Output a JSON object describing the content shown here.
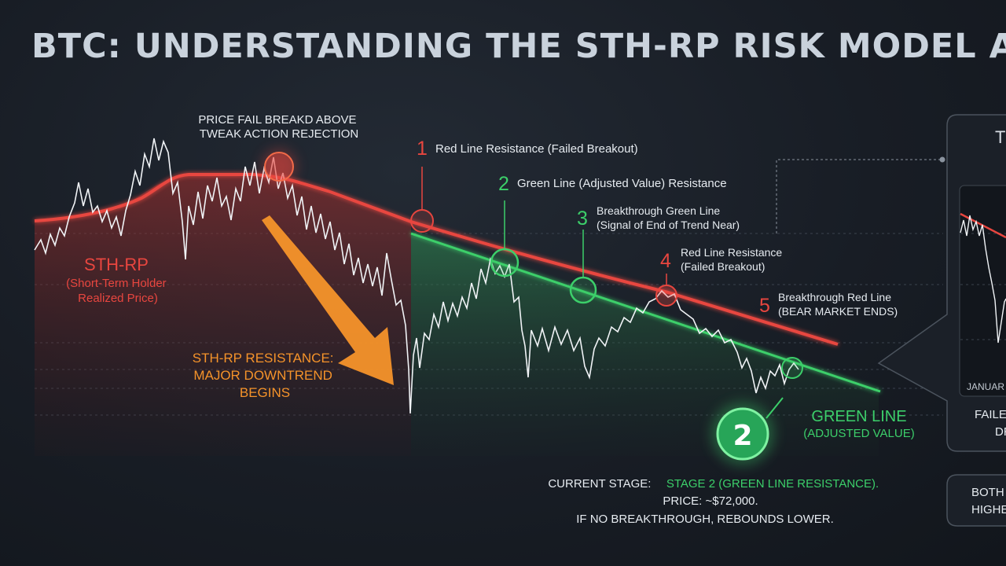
{
  "title": "BTC: UNDERSTANDING THE STH-RP RISK MODEL AN",
  "colors": {
    "red_line": "#e8463f",
    "green_line": "#3ccf6a",
    "orange": "#f5932a",
    "price": "#f0f3f6",
    "text": "#e6ebf0"
  },
  "annotations": {
    "top_rejection": [
      "PRICE FAIL BREAKD ABOVE",
      "TWEAK ACTION REJECTION"
    ],
    "sth_label": "STH-RP",
    "sth_sub": [
      "(Short-Term Holder",
      "Realized Price)"
    ],
    "resistance_note": [
      "STH-RP RESISTANCE:",
      "MAJOR DOWNTREND",
      "BEGINS"
    ],
    "green_label": "GREEN LINE",
    "green_sub": "(ADJUSTED VALUE)",
    "stage_badge": "2",
    "current_stage_prefix": "CURRENT STAGE:",
    "current_stage_value": "STAGE 2 (GREEN LINE RESISTANCE).",
    "price_line": "PRICE: ~$72,000.",
    "rebound_line": "IF NO BREAKTHROUGH, REBOUNDS LOWER."
  },
  "stages": [
    {
      "num": "1",
      "color": "red",
      "lines": [
        "Red Line Resistance (Failed Breakout)"
      ]
    },
    {
      "num": "2",
      "color": "green",
      "lines": [
        "Green Line (Adjusted Value) Resistance"
      ]
    },
    {
      "num": "3",
      "color": "green",
      "lines": [
        "Breakthrough Green Line",
        "(Signal of End of Trend Near)"
      ]
    },
    {
      "num": "4",
      "color": "red",
      "lines": [
        "Red Line Resistance",
        "(Failed Breakout)"
      ]
    },
    {
      "num": "5",
      "color": "red",
      "lines": [
        "Breakthrough Red Line",
        "(BEAR MARKET ENDS)"
      ]
    }
  ],
  "side_panel": {
    "title_fragment": "T",
    "axis_label": "JANUAR",
    "caption": [
      "FAILE",
      "DR"
    ],
    "bottom_box": [
      "BOTH",
      "HIGHE"
    ]
  },
  "chart_data": {
    "type": "line",
    "title": "BTC: UNDERSTANDING THE STH-RP RISK MODEL AN",
    "xlabel": "",
    "ylabel": "",
    "series": [
      {
        "name": "STH-RP",
        "values": [
          77,
          80,
          84,
          90,
          96,
          99,
          99,
          98,
          96,
          93,
          90,
          86,
          83,
          80,
          77,
          74,
          71,
          68,
          66,
          64,
          61,
          58,
          55
        ]
      },
      {
        "name": "GREEN LINE",
        "values": [
          null,
          null,
          null,
          null,
          null,
          null,
          null,
          null,
          null,
          null,
          null,
          null,
          75,
          72,
          69,
          66,
          63,
          60,
          57,
          54,
          51,
          48,
          44
        ]
      },
      {
        "name": "PRICE",
        "values": [
          70,
          78,
          88,
          104,
          88,
          96,
          94,
          104,
          92,
          82,
          68,
          50,
          58,
          64,
          69,
          50,
          54,
          55,
          63,
          65,
          58,
          46,
          50
        ]
      }
    ],
    "current_price": "~$72,000",
    "current_stage": 2
  }
}
